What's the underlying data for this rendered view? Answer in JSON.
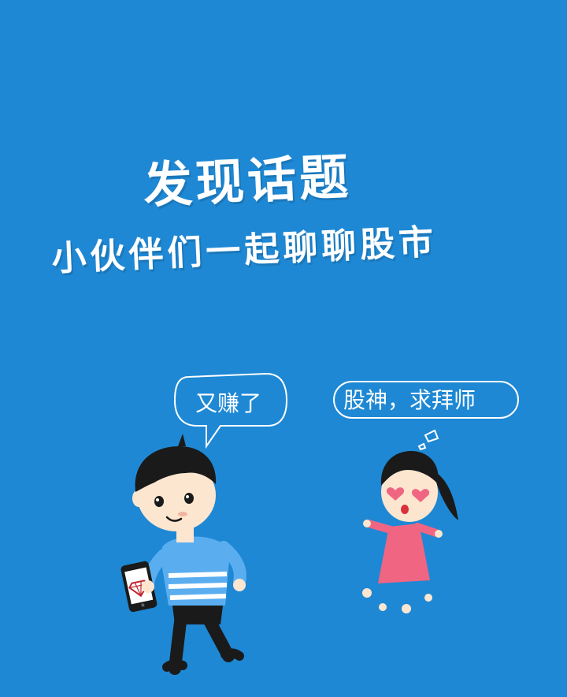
{
  "colors": {
    "background": "#1e88d4",
    "boy_shirt": "#5aaef0",
    "girl_dress": "#f06682",
    "hair": "#1a1a1a",
    "skin": "#fde6cf"
  },
  "headline": "发现话题",
  "subline": "小伙伴们一起聊聊股市",
  "boy_speech": "又赚了",
  "girl_speech": "股神，求拜师",
  "icons": [
    "phone-icon",
    "diamond-icon",
    "heart-eye-icon"
  ]
}
